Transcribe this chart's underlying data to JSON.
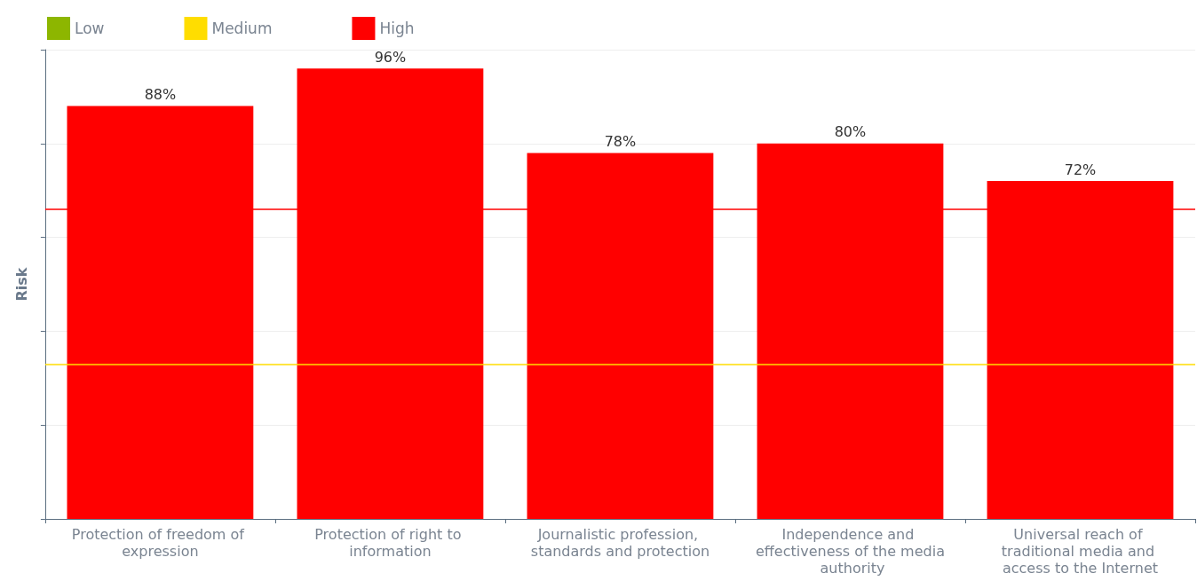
{
  "chart_data": {
    "type": "bar",
    "ylabel": "Risk",
    "categories": [
      "Protection of freedom of expression",
      "Protection of right to information",
      "Journalistic profession, standards and protection",
      "Independence and effectiveness of the media authority",
      "Universal reach of traditional media and access to the Internet"
    ],
    "series": [
      {
        "name": "Low",
        "color": "#8db600",
        "values": [
          null,
          null,
          null,
          null,
          null
        ]
      },
      {
        "name": "Medium",
        "color": "#ffdd00",
        "values": [
          null,
          null,
          null,
          null,
          null
        ]
      },
      {
        "name": "High",
        "color": "#ff0000",
        "values": [
          88,
          96,
          78,
          80,
          72
        ],
        "value_labels": [
          "88%",
          "96%",
          "78%",
          "80%",
          "72%"
        ]
      }
    ],
    "ylim": [
      0,
      100
    ],
    "yticks": [
      {
        "value": 0,
        "label": null
      },
      {
        "value": 20,
        "label": null
      },
      {
        "value": 40,
        "label": null
      },
      {
        "value": 60,
        "label": null
      },
      {
        "value": 80,
        "label": null
      },
      {
        "value": 100,
        "label": null
      }
    ],
    "ref_lines": [
      {
        "axis": "y",
        "value": 66,
        "color": "#ff0000"
      },
      {
        "axis": "y",
        "value": 33,
        "color": "#ffdd00"
      }
    ],
    "grid": "y",
    "legend": "top left"
  }
}
